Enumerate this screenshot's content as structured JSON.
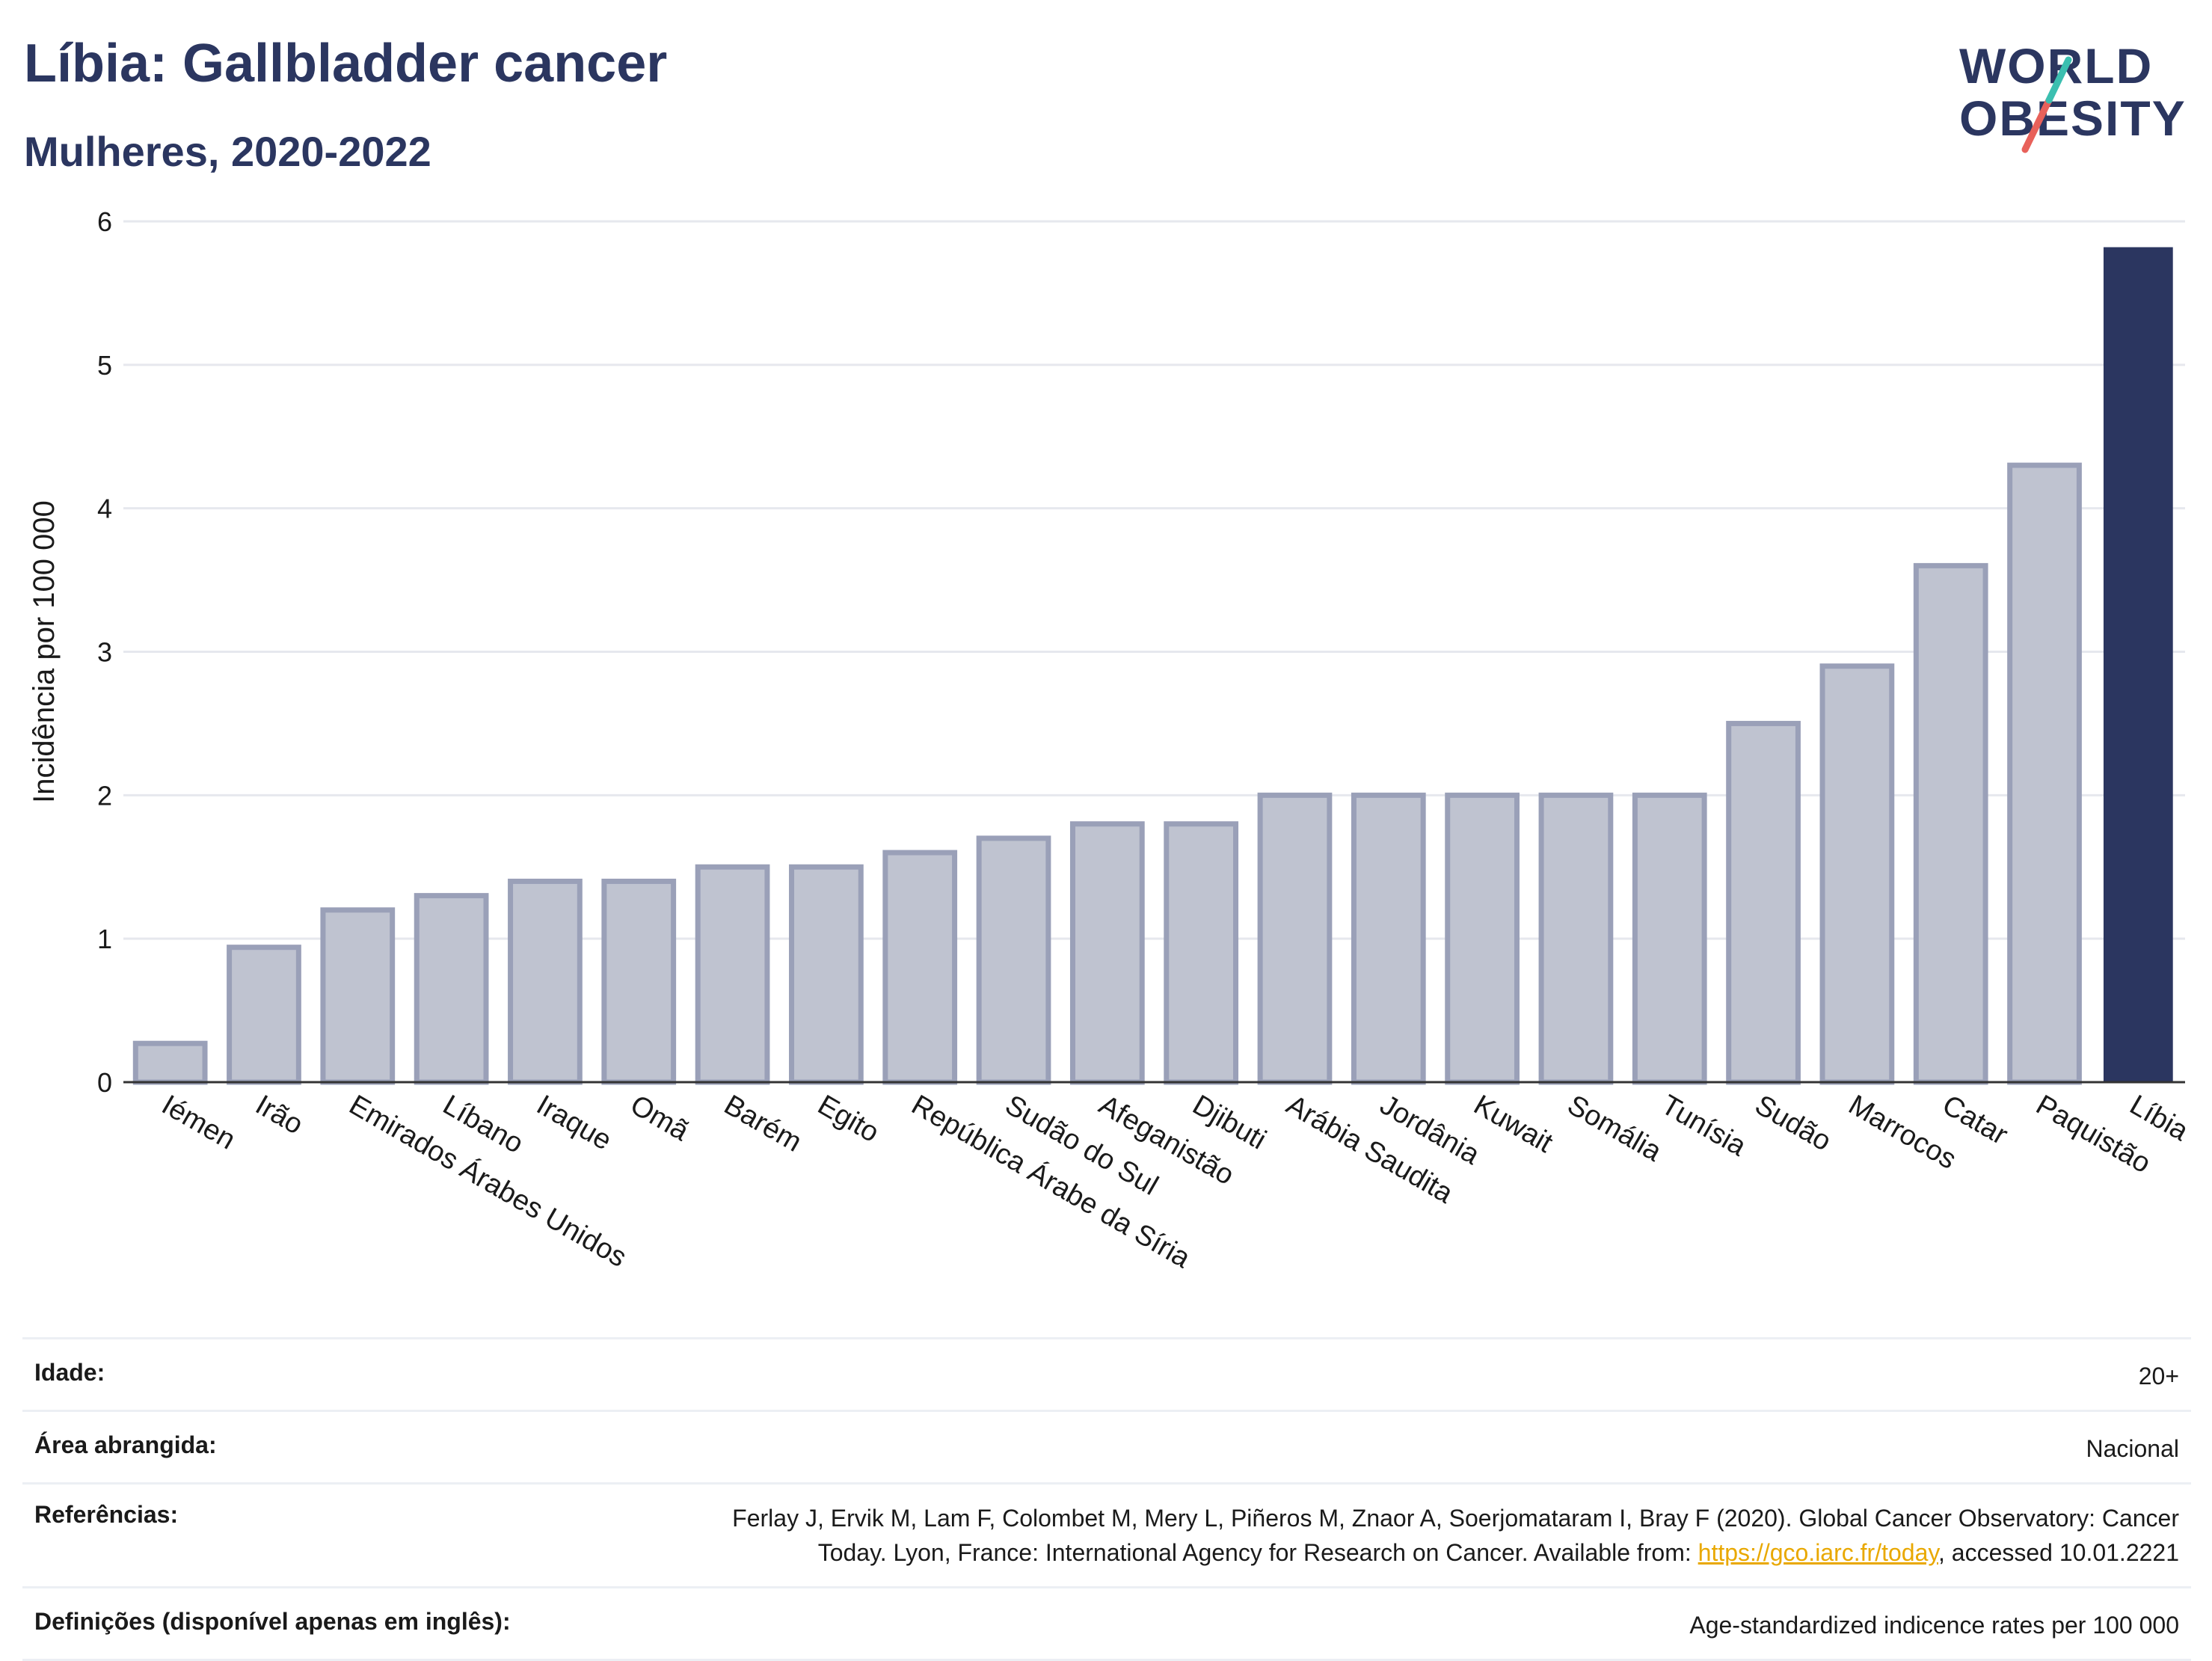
{
  "header": {
    "title": "Líbia: Gallbladder cancer",
    "subtitle": "Mulheres, 2020-2022"
  },
  "logo": {
    "line1": "WORLD",
    "line2": "OBESITY"
  },
  "colors": {
    "highlight": "#2b3660",
    "bar": "#bfc3d0",
    "bar_stroke": "#9aa0b8",
    "slash_teal": "#3bbfb0",
    "slash_red": "#e8615a",
    "link": "#e9a800"
  },
  "chart_data": {
    "type": "bar",
    "title": "Líbia: Gallbladder cancer",
    "subtitle": "Mulheres, 2020-2022",
    "ylabel": "Incidência por 100 000",
    "xlabel": "",
    "ylim": [
      0,
      6
    ],
    "yticks": [
      0,
      1,
      2,
      3,
      4,
      5,
      6
    ],
    "grid": true,
    "highlight_category": "Líbia",
    "categories": [
      "Iémen",
      "Irão",
      "Emirados Árabes Unidos",
      "Líbano",
      "Iraque",
      "Omã",
      "Barém",
      "Egito",
      "República Árabe da Síria",
      "Sudão do Sul",
      "Afeganistão",
      "Djibuti",
      "Arábia Saudita",
      "Jordânia",
      "Kuwait",
      "Somália",
      "Tunísia",
      "Sudão",
      "Marrocos",
      "Catar",
      "Paquistão",
      "Líbia"
    ],
    "values": [
      0.27,
      0.94,
      1.2,
      1.3,
      1.4,
      1.4,
      1.5,
      1.5,
      1.6,
      1.7,
      1.8,
      1.8,
      2.0,
      2.0,
      2.0,
      2.0,
      2.0,
      2.5,
      2.9,
      3.6,
      4.3,
      5.82
    ]
  },
  "info": {
    "age_label": "Idade:",
    "age_value": "20+",
    "area_label": "Área abrangida:",
    "area_value": "Nacional",
    "ref_label": "Referências:",
    "ref_text_1": "Ferlay J, Ervik M, Lam F, Colombet M, Mery L, Piñeros M, Znaor A, Soerjomataram I, Bray F (2020). Global Cancer Observatory: Cancer",
    "ref_text_2": "Today. Lyon, France: International Agency for Research on Cancer. Available from: ",
    "ref_link": "https://gco.iarc.fr/today",
    "ref_text_3": ", accessed 10.01.2221",
    "def_label": "Definições (disponível apenas em inglês):",
    "def_value": "Age-standardized indicence rates per 100 000"
  }
}
